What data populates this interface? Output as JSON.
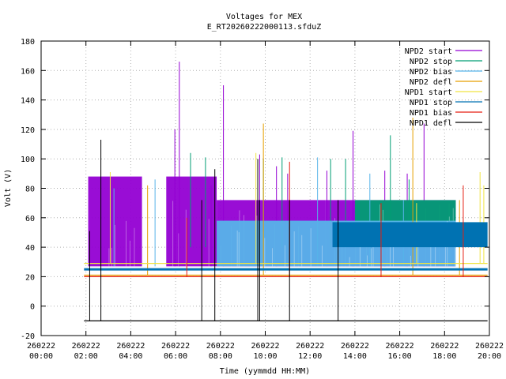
{
  "chart_data": {
    "type": "line",
    "title": "Voltages for MEX",
    "subtitle": "E_RT20260222000113.sfduZ",
    "xlabel": "Time (yymmdd HH:MM)",
    "ylabel": "Volt (V)",
    "xlim": [
      "2026-02-22 00:00",
      "2026-02-22 20:00"
    ],
    "ylim": [
      -20,
      180
    ],
    "grid": true,
    "legend_position": "top-right",
    "x_ticks": [
      {
        "date": "260222",
        "time": "00:00"
      },
      {
        "date": "260222",
        "time": "02:00"
      },
      {
        "date": "260222",
        "time": "04:00"
      },
      {
        "date": "260222",
        "time": "06:00"
      },
      {
        "date": "260222",
        "time": "08:00"
      },
      {
        "date": "260222",
        "time": "10:00"
      },
      {
        "date": "260222",
        "time": "12:00"
      },
      {
        "date": "260222",
        "time": "14:00"
      },
      {
        "date": "260222",
        "time": "16:00"
      },
      {
        "date": "260222",
        "time": "18:00"
      },
      {
        "date": "260222",
        "time": "20:00"
      }
    ],
    "y_ticks": [
      "-20",
      "0",
      "20",
      "40",
      "60",
      "80",
      "100",
      "120",
      "140",
      "160",
      "180"
    ],
    "series": [
      {
        "name": "NPD2 start",
        "color": "#9400d3",
        "bands": [
          [
            "02:06",
            "04:30",
            27,
            88
          ],
          [
            "05:35",
            "07:50",
            27,
            88
          ],
          [
            "07:50",
            "12:40",
            27,
            72
          ],
          [
            "12:40",
            "18:30",
            27,
            72
          ]
        ],
        "spikes": [
          [
            "05:58",
            120
          ],
          [
            "06:10",
            166
          ],
          [
            "08:08",
            150
          ],
          [
            "09:45",
            103
          ],
          [
            "10:30",
            95
          ],
          [
            "12:45",
            92
          ],
          [
            "13:55",
            119
          ],
          [
            "15:20",
            92
          ],
          [
            "16:20",
            90
          ],
          [
            "17:05",
            124
          ],
          [
            "07:35",
            82
          ],
          [
            "11:00",
            90
          ]
        ]
      },
      {
        "name": "NPD2 stop",
        "color": "#009e73",
        "bands": [
          [
            "14:00",
            "18:30",
            40,
            72
          ]
        ],
        "spikes": [
          [
            "06:40",
            104
          ],
          [
            "07:20",
            101
          ],
          [
            "09:55",
            100
          ],
          [
            "10:45",
            101
          ],
          [
            "12:55",
            100
          ],
          [
            "13:35",
            100
          ],
          [
            "15:35",
            116
          ],
          [
            "16:25",
            86
          ]
        ]
      },
      {
        "name": "NPD2 bias",
        "color": "#56b4e9",
        "bands": [
          [
            "07:50",
            "18:30",
            27,
            58
          ]
        ],
        "spikes": [
          [
            "03:15",
            80
          ],
          [
            "05:05",
            86
          ],
          [
            "12:20",
            101
          ],
          [
            "14:40",
            90
          ],
          [
            "16:10",
            72
          ]
        ]
      },
      {
        "name": "NPD2 defl",
        "color": "#e69f00",
        "bands": [],
        "spikes": [
          [
            "04:45",
            82
          ],
          [
            "09:55",
            124
          ],
          [
            "16:35",
            128
          ],
          [
            "18:40",
            72
          ]
        ],
        "baseline": 21
      },
      {
        "name": "NPD1 start",
        "color": "#f0e442",
        "bands": [],
        "spikes": [
          [
            "03:05",
            91
          ],
          [
            "09:35",
            104
          ],
          [
            "16:45",
            70
          ],
          [
            "19:35",
            91
          ],
          [
            "19:45",
            82
          ]
        ],
        "baseline": 29
      },
      {
        "name": "NPD1 stop",
        "color": "#0072b2",
        "bands": [
          [
            "13:00",
            "19:55",
            40,
            57
          ]
        ],
        "spikes": [],
        "baseline": 25
      },
      {
        "name": "NPD1 bias",
        "color": "#e51e10",
        "bands": [],
        "spikes": [
          [
            "06:30",
            60
          ],
          [
            "11:05",
            98
          ],
          [
            "15:10",
            70
          ],
          [
            "18:50",
            82
          ]
        ],
        "baseline": 20
      },
      {
        "name": "NPD1 defl",
        "color": "#000000",
        "bands": [],
        "spikes": [
          [
            "02:10",
            51
          ],
          [
            "02:40",
            113
          ],
          [
            "07:45",
            93
          ],
          [
            "07:10",
            72
          ],
          [
            "09:40",
            100
          ],
          [
            "09:45",
            72
          ],
          [
            "11:05",
            72
          ],
          [
            "13:15",
            72
          ]
        ],
        "baseline": -10
      }
    ]
  }
}
